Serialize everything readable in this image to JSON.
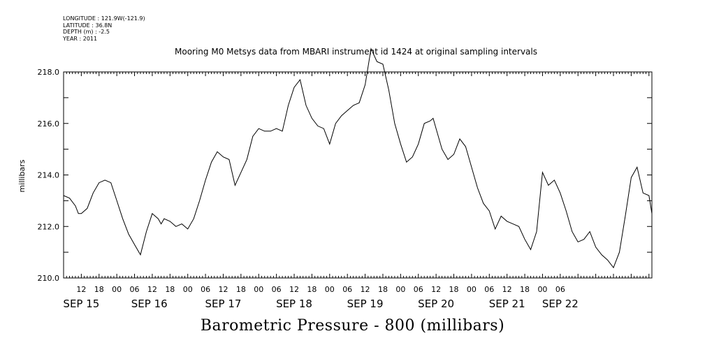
{
  "meta": {
    "longitude": "LONGITUDE : 121.9W(-121.9)",
    "latitude": "LATITUDE : 36.8N",
    "depth": "DEPTH (m) : -2.5",
    "year": "YEAR : 2011"
  },
  "chart_data": {
    "type": "line",
    "title": "Mooring M0 Metsys data from MBARI instrument id 1424 at original sampling intervals",
    "xlabel": "Barometric Pressure - 800 (millibars)",
    "ylabel": "millibars",
    "ylim": [
      210.0,
      218.0
    ],
    "yticks": [
      "210.0",
      "212.0",
      "214.0",
      "216.0",
      "218.0"
    ],
    "xrange_hours": [
      0,
      199
    ],
    "hour_tick_labels": [
      "12",
      "18",
      "00",
      "06",
      "12",
      "18",
      "00",
      "06",
      "12",
      "18",
      "00",
      "06",
      "12",
      "18",
      "00",
      "06",
      "12",
      "18",
      "00",
      "06",
      "12",
      "18",
      "00",
      "06",
      "12",
      "18",
      "00",
      "06"
    ],
    "date_labels": [
      "SEP 15",
      "SEP 16",
      "SEP 17",
      "SEP 18",
      "SEP 19",
      "SEP 20",
      "SEP 21",
      "SEP 22"
    ],
    "grid": false,
    "series": [
      {
        "x": [
          0,
          2,
          4,
          5,
          6,
          8,
          10,
          12,
          14,
          16,
          18,
          20,
          22,
          24,
          26,
          28,
          30,
          32,
          33,
          34,
          36,
          38,
          40,
          42,
          44,
          46,
          48,
          50,
          52,
          54,
          56,
          58,
          60,
          62,
          64,
          66,
          68,
          70,
          72,
          74,
          76,
          78,
          80,
          82,
          84,
          86,
          88,
          90,
          92,
          94,
          96,
          98,
          100,
          102,
          104,
          106,
          108,
          110,
          112,
          114,
          116,
          118,
          120,
          122,
          124,
          125,
          126,
          128,
          130,
          132,
          134,
          136,
          138,
          140,
          142,
          144,
          146,
          148,
          150,
          152,
          154,
          156,
          158,
          160,
          162,
          164,
          166,
          168,
          170,
          172,
          174,
          176,
          178,
          180,
          182,
          184,
          186,
          188,
          190,
          192,
          194,
          196,
          198,
          199
        ],
        "y": [
          213.2,
          213.1,
          212.8,
          212.5,
          212.5,
          212.7,
          213.3,
          213.7,
          213.8,
          213.7,
          213.0,
          212.3,
          211.7,
          211.3,
          210.9,
          211.8,
          212.5,
          212.3,
          212.1,
          212.3,
          212.2,
          212.0,
          212.1,
          211.9,
          212.3,
          213.0,
          213.8,
          214.5,
          214.9,
          214.7,
          214.6,
          213.6,
          214.1,
          214.6,
          215.5,
          215.8,
          215.7,
          215.7,
          215.8,
          215.7,
          216.7,
          217.4,
          217.7,
          216.7,
          216.2,
          215.9,
          215.8,
          215.2,
          216.0,
          216.3,
          216.5,
          216.7,
          216.8,
          217.5,
          218.9,
          218.4,
          218.3,
          217.3,
          216.0,
          215.2,
          214.5,
          214.7,
          215.2,
          216.0,
          216.1,
          216.2,
          215.8,
          215.0,
          214.6,
          214.8,
          215.4,
          215.1,
          214.3,
          213.5,
          212.9,
          212.6,
          211.9,
          212.4,
          212.2,
          212.1,
          212.0,
          211.5,
          211.1,
          211.8,
          214.1,
          213.6,
          213.8,
          213.3,
          212.6,
          211.8,
          211.4,
          211.5,
          211.8,
          211.2,
          210.9,
          210.7,
          210.4,
          211.0,
          212.4,
          213.9,
          214.3,
          213.3,
          213.2,
          212.5
        ]
      }
    ]
  }
}
